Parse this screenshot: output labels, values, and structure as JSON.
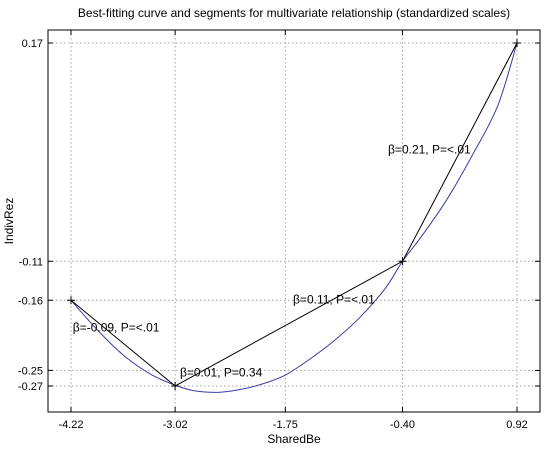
{
  "chart_data": {
    "type": "line",
    "title": "Best-fitting curve and segments for multivariate relationship (standardized scales)",
    "xlabel": "SharedBe",
    "ylabel": "IndivRez",
    "xlim": [
      -4.22,
      0.92
    ],
    "ylim": [
      -0.27,
      0.17
    ],
    "xticks": [
      "-4.22",
      "-3.02",
      "-1.75",
      "-0.40",
      "0.92"
    ],
    "xtick_values": [
      -4.22,
      -3.02,
      -1.75,
      -0.4,
      0.92
    ],
    "yticks": [
      "-0.27",
      "-0.25",
      "-0.16",
      "-0.11",
      "0.17"
    ],
    "ytick_values": [
      -0.27,
      -0.25,
      -0.16,
      -0.11,
      0.17
    ],
    "grid": true,
    "series": [
      {
        "role": "curve",
        "color": "#3c3ca6",
        "x": [
          -4.22,
          -3.9,
          -3.6,
          -3.3,
          -3.02,
          -2.8,
          -2.5,
          -2.2,
          -1.95,
          -1.75,
          -1.5,
          -1.2,
          -0.9,
          -0.6,
          -0.4,
          -0.2,
          0.1,
          0.4,
          0.7,
          0.92
        ],
        "y": [
          -0.16,
          -0.2,
          -0.232,
          -0.255,
          -0.269,
          -0.276,
          -0.278,
          -0.273,
          -0.265,
          -0.256,
          -0.238,
          -0.213,
          -0.183,
          -0.145,
          -0.11,
          -0.081,
          -0.033,
          0.025,
          0.09,
          0.17
        ]
      },
      {
        "role": "segments",
        "color": "#000000",
        "markers": true,
        "x": [
          -4.22,
          -3.02,
          -0.4,
          0.92
        ],
        "y": [
          -0.16,
          -0.27,
          -0.11,
          0.17
        ]
      }
    ],
    "annotations": [
      {
        "text": "β=-0.09, P=<.01",
        "x": -3.7,
        "y": -0.2
      },
      {
        "text": "β=0.01, P=0.34",
        "x": -2.49,
        "y": -0.258
      },
      {
        "text": "β=0.11, P=<.01",
        "x": -1.19,
        "y": -0.164
      },
      {
        "text": "β=0.21, P=<.01",
        "x": -0.09,
        "y": 0.028
      }
    ]
  }
}
